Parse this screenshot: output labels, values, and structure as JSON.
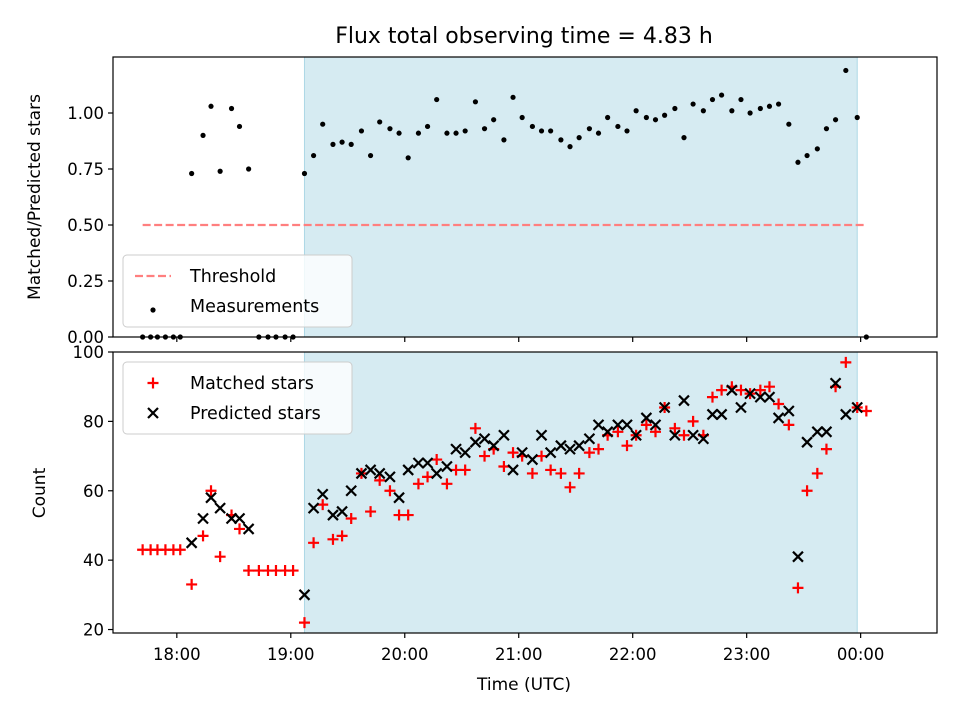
{
  "chart_data": [
    {
      "type": "scatter",
      "title": "Flux total observing time = 4.83 h",
      "ylabel": "Matched/Predicted stars",
      "xlabel": "",
      "x_unit": "hours since 00:00 UTC of the observing night",
      "xlim": [
        17.44,
        24.67
      ],
      "ylim": [
        0.0,
        1.25
      ],
      "yticks": [
        "0.00",
        "0.25",
        "0.50",
        "0.75",
        "1.00"
      ],
      "grid": false,
      "legend_position": "lower left",
      "observing_window": {
        "start": 19.12,
        "end": 23.97,
        "color": "#add8e6"
      },
      "threshold": {
        "name": "Threshold",
        "value": 0.5,
        "x_start": 17.7,
        "x_end": 24.05,
        "color": "#ff7f7f",
        "style": "dashed"
      },
      "series": [
        {
          "name": "Measurements",
          "color": "#000000",
          "marker": "dot",
          "x": [
            17.7,
            17.77,
            17.83,
            17.9,
            17.97,
            18.03,
            18.13,
            18.23,
            18.3,
            18.38,
            18.48,
            18.55,
            18.63,
            18.72,
            18.8,
            18.87,
            18.95,
            19.02,
            19.12,
            19.2,
            19.28,
            19.37,
            19.45,
            19.53,
            19.62,
            19.7,
            19.78,
            19.87,
            19.95,
            20.03,
            20.12,
            20.2,
            20.28,
            20.37,
            20.45,
            20.53,
            20.62,
            20.7,
            20.78,
            20.87,
            20.95,
            21.03,
            21.12,
            21.2,
            21.28,
            21.37,
            21.45,
            21.53,
            21.62,
            21.7,
            21.78,
            21.87,
            21.95,
            22.03,
            22.12,
            22.2,
            22.28,
            22.37,
            22.45,
            22.53,
            22.62,
            22.7,
            22.78,
            22.87,
            22.95,
            23.03,
            23.12,
            23.2,
            23.28,
            23.37,
            23.45,
            23.53,
            23.62,
            23.7,
            23.78,
            23.87,
            23.97,
            24.05
          ],
          "y": [
            0.0,
            0.0,
            0.0,
            0.0,
            0.0,
            0.0,
            0.73,
            0.9,
            1.03,
            0.74,
            1.02,
            0.94,
            0.75,
            0.0,
            0.0,
            0.0,
            0.0,
            0.0,
            0.73,
            0.81,
            0.95,
            0.86,
            0.87,
            0.86,
            0.92,
            0.81,
            0.96,
            0.93,
            0.91,
            0.8,
            0.91,
            0.94,
            1.06,
            0.91,
            0.91,
            0.92,
            1.05,
            0.93,
            0.97,
            0.88,
            1.07,
            0.98,
            0.94,
            0.92,
            0.92,
            0.88,
            0.85,
            0.89,
            0.93,
            0.91,
            0.98,
            0.94,
            0.92,
            1.01,
            0.98,
            0.97,
            0.99,
            1.02,
            0.89,
            1.04,
            1.01,
            1.06,
            1.08,
            1.01,
            1.06,
            1.0,
            1.02,
            1.03,
            1.04,
            0.95,
            0.78,
            0.81,
            0.84,
            0.93,
            0.97,
            1.19,
            0.98,
            0.0
          ]
        }
      ]
    },
    {
      "type": "scatter",
      "title": "",
      "xlabel": "Time (UTC)",
      "ylabel": "Count",
      "x_unit": "hours since 00:00 UTC of the observing night",
      "xlim": [
        17.44,
        24.67
      ],
      "ylim": [
        19,
        100
      ],
      "yticks": [
        "20",
        "40",
        "60",
        "80",
        "100"
      ],
      "xticks": [
        "18:00",
        "19:00",
        "20:00",
        "21:00",
        "22:00",
        "23:00",
        "00:00"
      ],
      "xtick_values": [
        18,
        19,
        20,
        21,
        22,
        23,
        24
      ],
      "grid": false,
      "legend_position": "upper left",
      "observing_window": {
        "start": 19.12,
        "end": 23.97,
        "color": "#add8e6"
      },
      "series": [
        {
          "name": "Matched stars",
          "color": "#ff0000",
          "marker": "plus",
          "x": [
            17.7,
            17.77,
            17.83,
            17.9,
            17.97,
            18.03,
            18.13,
            18.23,
            18.3,
            18.38,
            18.48,
            18.55,
            18.63,
            18.72,
            18.8,
            18.87,
            18.95,
            19.02,
            19.12,
            19.2,
            19.28,
            19.37,
            19.45,
            19.53,
            19.62,
            19.7,
            19.78,
            19.87,
            19.95,
            20.03,
            20.12,
            20.2,
            20.28,
            20.37,
            20.45,
            20.53,
            20.62,
            20.7,
            20.78,
            20.87,
            20.95,
            21.03,
            21.12,
            21.2,
            21.28,
            21.37,
            21.45,
            21.53,
            21.62,
            21.7,
            21.78,
            21.87,
            21.95,
            22.03,
            22.12,
            22.2,
            22.28,
            22.37,
            22.45,
            22.53,
            22.62,
            22.7,
            22.78,
            22.87,
            22.95,
            23.03,
            23.12,
            23.2,
            23.28,
            23.37,
            23.45,
            23.53,
            23.62,
            23.7,
            23.78,
            23.87,
            23.97,
            24.05
          ],
          "y": [
            43,
            43,
            43,
            43,
            43,
            43,
            33,
            47,
            60,
            41,
            53,
            49,
            37,
            37,
            37,
            37,
            37,
            37,
            22,
            45,
            56,
            46,
            47,
            52,
            65,
            54,
            63,
            60,
            53,
            53,
            62,
            64,
            69,
            62,
            66,
            66,
            78,
            70,
            72,
            67,
            71,
            70,
            65,
            70,
            66,
            65,
            61,
            65,
            71,
            72,
            76,
            77,
            73,
            76,
            79,
            77,
            84,
            78,
            76,
            80,
            76,
            87,
            89,
            90,
            89,
            88,
            89,
            90,
            85,
            79,
            32,
            60,
            65,
            72,
            90,
            97,
            84,
            83
          ]
        },
        {
          "name": "Predicted stars",
          "color": "#000000",
          "marker": "x",
          "x": [
            18.13,
            18.23,
            18.3,
            18.38,
            18.48,
            18.55,
            18.63,
            19.12,
            19.2,
            19.28,
            19.37,
            19.45,
            19.53,
            19.62,
            19.7,
            19.78,
            19.87,
            19.95,
            20.03,
            20.12,
            20.2,
            20.28,
            20.37,
            20.45,
            20.53,
            20.62,
            20.7,
            20.78,
            20.87,
            20.95,
            21.03,
            21.12,
            21.2,
            21.28,
            21.37,
            21.45,
            21.53,
            21.62,
            21.7,
            21.78,
            21.87,
            21.95,
            22.03,
            22.12,
            22.2,
            22.28,
            22.37,
            22.45,
            22.53,
            22.62,
            22.7,
            22.78,
            22.87,
            22.95,
            23.03,
            23.12,
            23.2,
            23.28,
            23.37,
            23.45,
            23.53,
            23.62,
            23.7,
            23.78,
            23.87,
            23.97
          ],
          "y": [
            45,
            52,
            58,
            55,
            52,
            52,
            49,
            30,
            55,
            59,
            53,
            54,
            60,
            65,
            66,
            65,
            64,
            58,
            66,
            68,
            68,
            65,
            67,
            72,
            71,
            74,
            75,
            73,
            76,
            66,
            71,
            69,
            76,
            71,
            73,
            72,
            73,
            75,
            79,
            77,
            79,
            79,
            76,
            81,
            79,
            84,
            76,
            86,
            76,
            75,
            82,
            82,
            89,
            84,
            88,
            87,
            87,
            81,
            83,
            41,
            74,
            77,
            77,
            91,
            82,
            84
          ]
        }
      ]
    }
  ]
}
